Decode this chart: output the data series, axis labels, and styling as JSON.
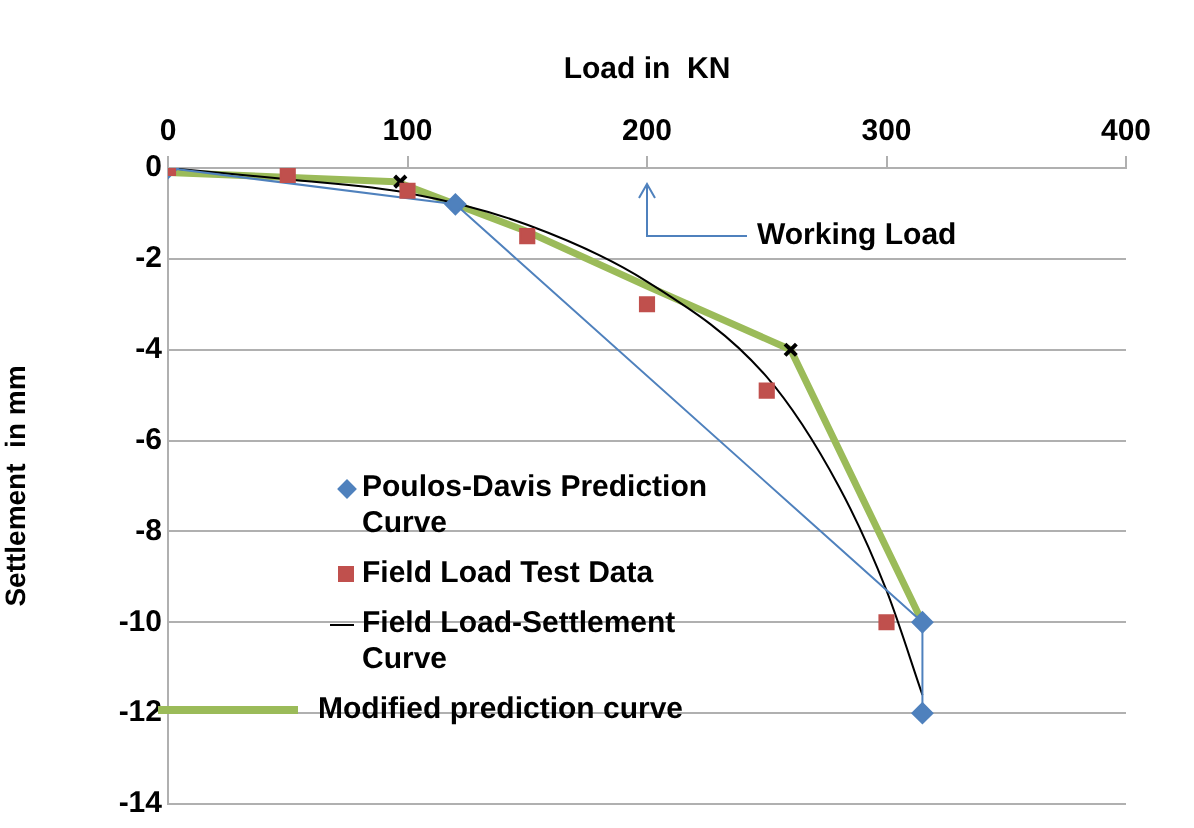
{
  "chart_data": {
    "type": "line",
    "xlabel": "Load in  KN",
    "ylabel": "Settlement  in mm",
    "xlim": [
      0,
      400
    ],
    "xticks": [
      0,
      100,
      200,
      300,
      400
    ],
    "ylim": [
      -14,
      0
    ],
    "yticks": [
      0,
      -2,
      -4,
      -6,
      -8,
      -10,
      -12,
      -14
    ],
    "grid": "y",
    "legend": "bottom left",
    "annotations": [
      "Working Load"
    ],
    "series": [
      {
        "name": "Poulos-Davis Prediction Curve",
        "type": "line",
        "marker": "diamond",
        "color": "#4f81bd",
        "x": [
          0,
          120,
          315,
          315
        ],
        "values": [
          0,
          -0.8,
          -10,
          -12
        ]
      },
      {
        "name": "Field Load Test Data",
        "type": "scatter",
        "marker": "square",
        "color": "#c0504d",
        "x": [
          0,
          50,
          100,
          150,
          200,
          250,
          300
        ],
        "values": [
          0,
          -0.15,
          -0.5,
          -1.5,
          -3,
          -4.9,
          -10
        ]
      },
      {
        "name": "Field Load-Settlement Curve",
        "type": "line",
        "marker": "none",
        "color": "#000000",
        "x": [
          0,
          50,
          100,
          150,
          200,
          250,
          280,
          300,
          315
        ],
        "values": [
          0,
          -0.25,
          -0.55,
          -1.25,
          -2.5,
          -4.6,
          -7,
          -9.3,
          -11.6
        ]
      },
      {
        "name": "Modified prediction curve",
        "type": "line",
        "marker": "none",
        "color": "#9bbb59",
        "x": [
          0,
          95,
          120,
          150,
          200,
          260,
          315
        ],
        "values": [
          -0.1,
          -0.3,
          -0.8,
          -1.4,
          -2.6,
          -4,
          -10
        ]
      },
      {
        "type": "scatter",
        "marker": "cross",
        "color": "#000000",
        "x": [
          97,
          260
        ],
        "values": [
          -0.3,
          -4
        ]
      }
    ]
  }
}
